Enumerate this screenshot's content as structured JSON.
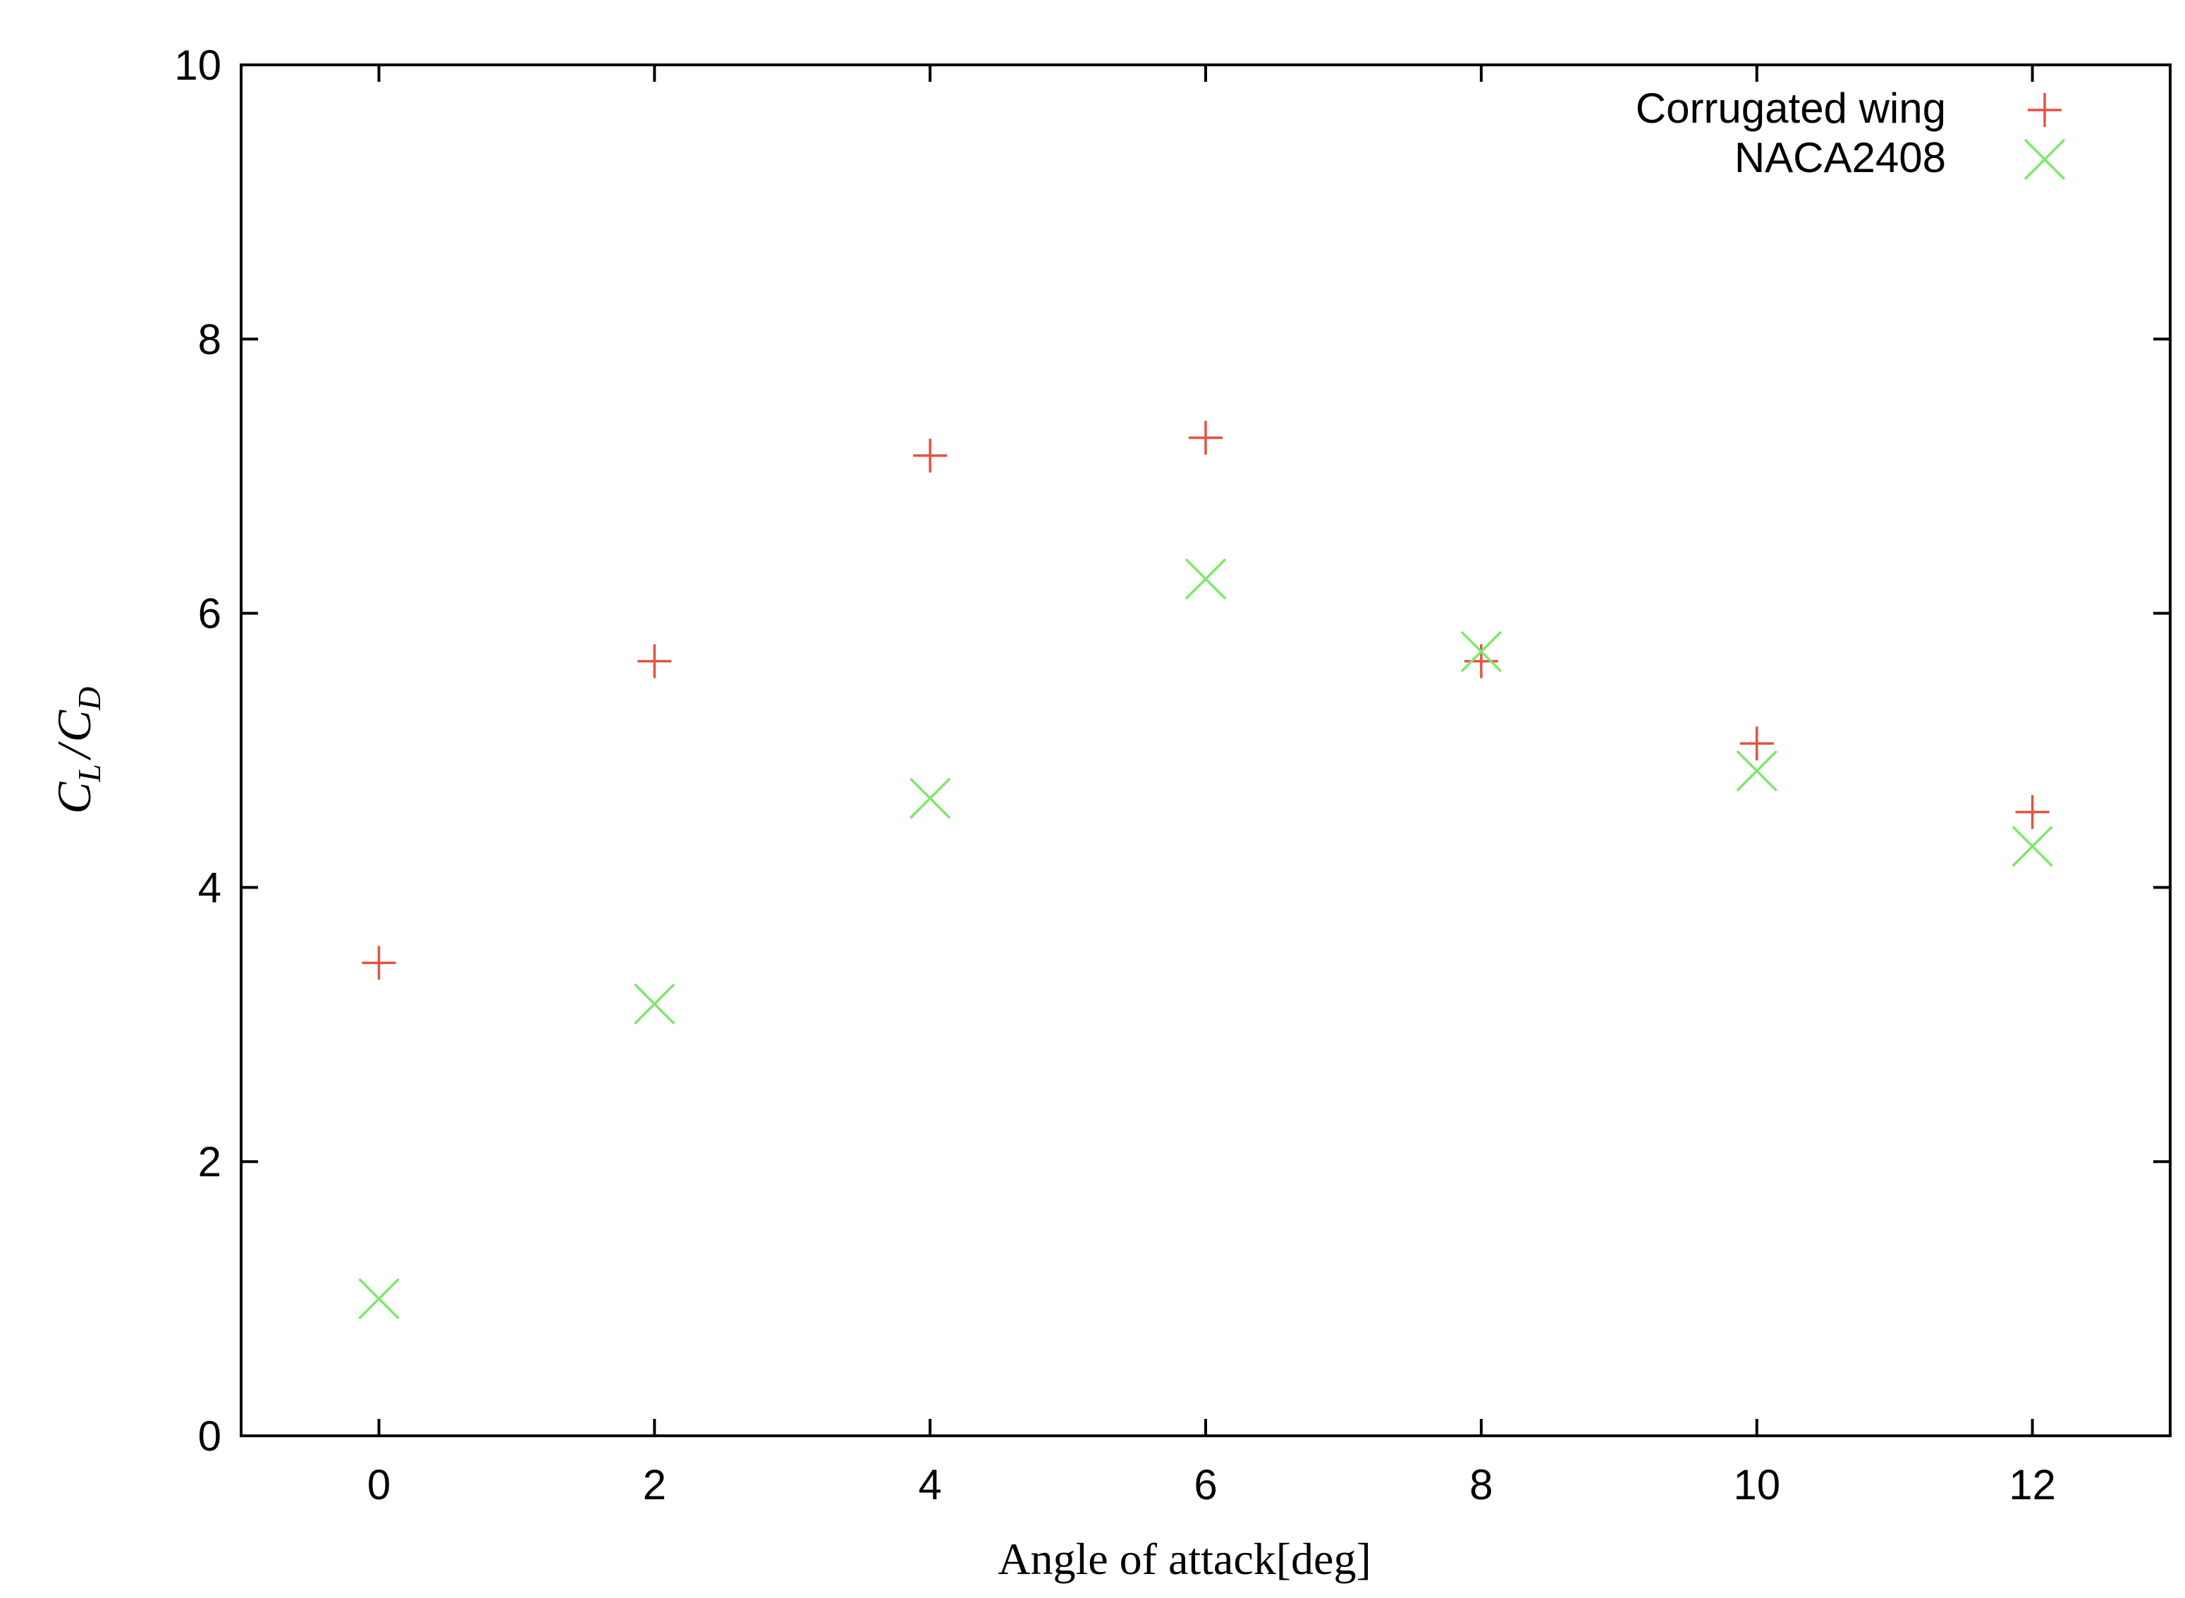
{
  "chart_data": {
    "type": "scatter",
    "title": "",
    "xlabel": "Angle of attack[deg]",
    "ylabel": {
      "text": "C_L / C_D",
      "c1": "C",
      "sub1": "L",
      "slash": "/",
      "c2": "C",
      "sub2": "D"
    },
    "xlim": [
      -1,
      13
    ],
    "ylim": [
      0,
      10
    ],
    "xticks": [
      0,
      2,
      4,
      6,
      8,
      10,
      12
    ],
    "yticks": [
      0,
      2,
      4,
      6,
      8,
      10
    ],
    "grid": false,
    "legend_position": "top-right",
    "series": [
      {
        "name": "Corrugated wing",
        "marker": "plus",
        "color": "#e8503f",
        "x": [
          0,
          2,
          4,
          6,
          8,
          10,
          12
        ],
        "y": [
          3.45,
          5.65,
          7.15,
          7.28,
          5.65,
          5.05,
          4.55
        ]
      },
      {
        "name": "NACA2408",
        "marker": "cross",
        "color": "#7ee86b",
        "x": [
          0,
          2,
          4,
          6,
          8,
          10,
          12
        ],
        "y": [
          1.0,
          3.15,
          4.65,
          6.25,
          5.72,
          4.85,
          4.3
        ]
      }
    ]
  }
}
